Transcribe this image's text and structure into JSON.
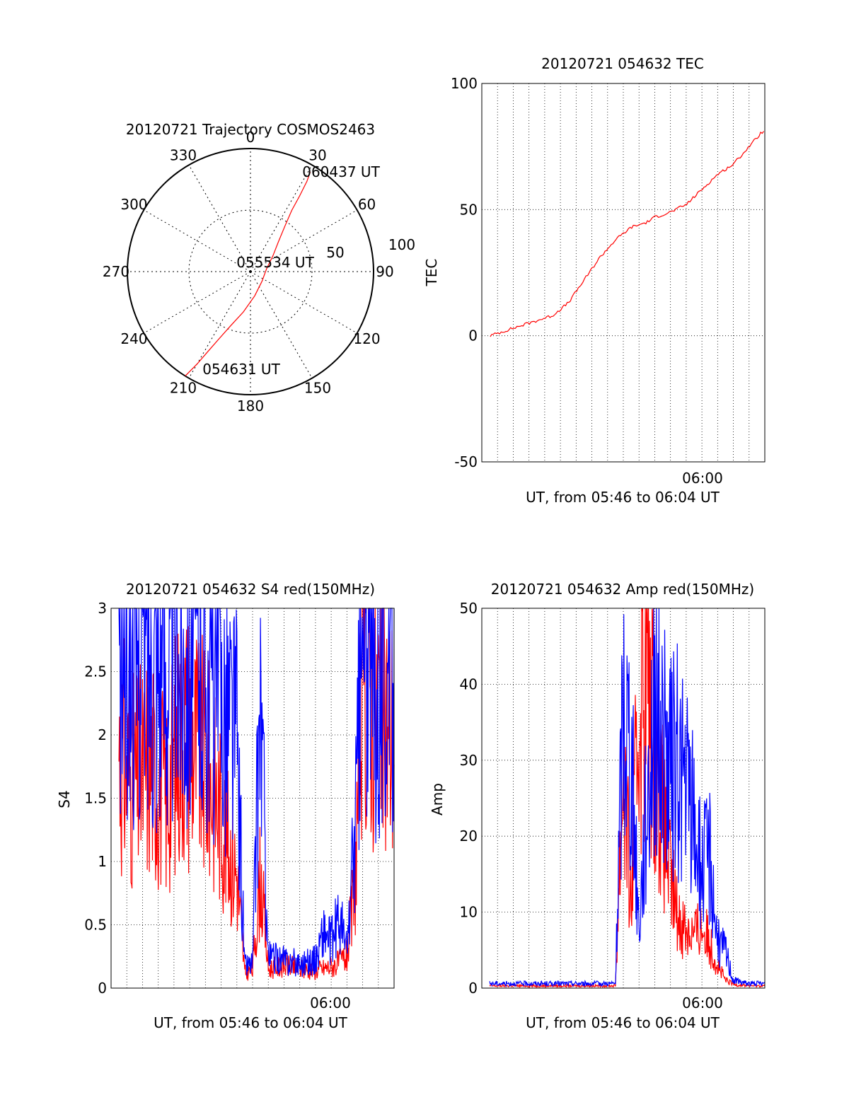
{
  "colors": {
    "red": "#ff0000",
    "blue": "#0000ff",
    "axis": "#000000",
    "background": "#ffffff"
  },
  "chart_data": [
    {
      "id": "trajectory",
      "type": "polar",
      "title": "20120721 Trajectory COSMOS2463",
      "azimuth_labels": [
        "0",
        "30",
        "60",
        "90",
        "120",
        "150",
        "180",
        "210",
        "240",
        "270",
        "300",
        "330"
      ],
      "radius_labels": [
        "50",
        "100"
      ],
      "annotations": {
        "start": "054631 UT",
        "mid": "055534 UT",
        "end": "060437 UT"
      },
      "series": [
        {
          "color": "#ff0000",
          "points": [
            {
              "az": 212,
              "el": 0
            },
            {
              "az": 210,
              "el": 12
            },
            {
              "az": 208,
              "el": 24
            },
            {
              "az": 205,
              "el": 36
            },
            {
              "az": 200,
              "el": 48
            },
            {
              "az": 190,
              "el": 60
            },
            {
              "az": 170,
              "el": 72
            },
            {
              "az": 130,
              "el": 79
            },
            {
              "az": 80,
              "el": 78
            },
            {
              "az": 55,
              "el": 70
            },
            {
              "az": 43,
              "el": 60
            },
            {
              "az": 37,
              "el": 48
            },
            {
              "az": 34,
              "el": 36
            },
            {
              "az": 33,
              "el": 24
            },
            {
              "az": 32,
              "el": 12
            },
            {
              "az": 31,
              "el": 5
            }
          ]
        }
      ]
    },
    {
      "id": "tec",
      "type": "line",
      "title": "20120721 054632 TEC",
      "xlabel": "UT, from 05:46 to 06:04 UT",
      "ylabel": "TEC",
      "xlim": [
        "05:46",
        "06:04"
      ],
      "ylim": [
        -50,
        100
      ],
      "ytick_labels": [
        "-50",
        "0",
        "50",
        "100"
      ],
      "xtick_labels": [
        "06:00"
      ],
      "grid": true,
      "series": [
        {
          "color": "#ff0000",
          "x": [
            "05:46:32",
            "05:47:30",
            "05:48:30",
            "05:49:30",
            "05:50:30",
            "05:51:30",
            "05:52:30",
            "05:53:30",
            "05:54:30",
            "05:55:30",
            "05:56:30",
            "05:57:00",
            "05:58:00",
            "05:59:00",
            "06:00:00",
            "06:01:00",
            "06:02:00",
            "06:03:00",
            "06:04:00"
          ],
          "y": [
            0,
            2,
            4,
            6,
            8,
            13,
            22,
            31,
            38,
            43,
            45,
            47,
            49,
            52,
            58,
            64,
            68,
            75,
            82
          ]
        }
      ]
    },
    {
      "id": "s4",
      "type": "line",
      "title": "20120721 054632 S4 red(150MHz)",
      "xlabel": "UT, from 05:46 to 06:04 UT",
      "ylabel": "S4",
      "xlim": [
        "05:46",
        "06:04"
      ],
      "ylim": [
        0,
        3
      ],
      "ytick_labels": [
        "0",
        "0.5",
        "1",
        "1.5",
        "2",
        "2.5",
        "3"
      ],
      "xtick_labels": [
        "06:00"
      ],
      "grid": true,
      "series": [
        {
          "color": "#ff0000",
          "x": [
            "05:46:30",
            "05:47:30",
            "05:48:30",
            "05:49:30",
            "05:50:30",
            "05:51:30",
            "05:52:30",
            "05:53:30",
            "05:54:00",
            "05:54:30",
            "05:55:00",
            "05:55:30",
            "05:56:00",
            "05:57:00",
            "05:58:00",
            "05:59:00",
            "06:00:00",
            "06:00:30",
            "06:01:00",
            "06:01:30",
            "06:02:00",
            "06:03:00",
            "06:04:00"
          ],
          "y": [
            1.9,
            1.6,
            1.8,
            1.5,
            2.1,
            1.9,
            1.6,
            1.1,
            0.9,
            0.12,
            0.14,
            0.9,
            0.15,
            0.18,
            0.15,
            0.14,
            0.17,
            0.2,
            0.25,
            0.8,
            2.5,
            2.2,
            2.0
          ]
        },
        {
          "color": "#0000ff",
          "x": [
            "05:46:30",
            "05:47:30",
            "05:48:30",
            "05:49:30",
            "05:50:30",
            "05:51:30",
            "05:52:30",
            "05:53:30",
            "05:54:00",
            "05:54:30",
            "05:55:00",
            "05:55:30",
            "05:56:00",
            "05:57:00",
            "05:58:00",
            "05:59:00",
            "05:59:30",
            "06:00:00",
            "06:00:30",
            "06:01:00",
            "06:01:30",
            "06:02:00",
            "06:03:00",
            "06:04:00"
          ],
          "y": [
            2.6,
            2.7,
            2.8,
            2.6,
            2.7,
            2.8,
            2.5,
            2.2,
            2.0,
            0.18,
            0.2,
            2.3,
            0.25,
            0.22,
            0.2,
            0.22,
            0.45,
            0.35,
            0.55,
            0.3,
            1.2,
            2.7,
            2.5,
            2.6
          ]
        }
      ]
    },
    {
      "id": "amp",
      "type": "line",
      "title": "20120721 054632 Amp red(150MHz)",
      "xlabel": "UT, from 05:46 to 06:04 UT",
      "ylabel": "Amp",
      "xlim": [
        "05:46",
        "06:04"
      ],
      "ylim": [
        0,
        50
      ],
      "ytick_labels": [
        "0",
        "10",
        "20",
        "30",
        "40",
        "50"
      ],
      "xtick_labels": [
        "06:00"
      ],
      "grid": true,
      "series": [
        {
          "color": "#ff0000",
          "x": [
            "05:46:30",
            "05:50:00",
            "05:54:30",
            "05:55:00",
            "05:55:30",
            "05:56:00",
            "05:56:30",
            "05:57:00",
            "05:57:30",
            "05:58:00",
            "05:58:30",
            "05:59:00",
            "05:59:30",
            "06:00:00",
            "06:00:30",
            "06:01:00",
            "06:01:30",
            "06:02:00",
            "06:03:00",
            "06:04:00"
          ],
          "y": [
            0.3,
            0.3,
            0.3,
            30,
            10,
            38,
            42,
            33,
            22,
            14,
            9,
            8,
            7,
            8,
            6,
            3,
            1,
            0.5,
            0.3,
            0.3
          ]
        },
        {
          "color": "#0000ff",
          "x": [
            "05:46:30",
            "05:50:00",
            "05:54:30",
            "05:55:00",
            "05:55:30",
            "05:56:00",
            "05:56:30",
            "05:57:00",
            "05:57:30",
            "05:58:00",
            "05:58:30",
            "05:59:00",
            "05:59:30",
            "06:00:00",
            "06:00:30",
            "06:01:00",
            "06:01:30",
            "06:02:00",
            "06:03:00",
            "06:04:00"
          ],
          "y": [
            0.6,
            0.6,
            0.6,
            38,
            30,
            8,
            25,
            38,
            32,
            28,
            30,
            26,
            22,
            15,
            18,
            6,
            5,
            1,
            0.6,
            0.6
          ]
        }
      ]
    }
  ]
}
